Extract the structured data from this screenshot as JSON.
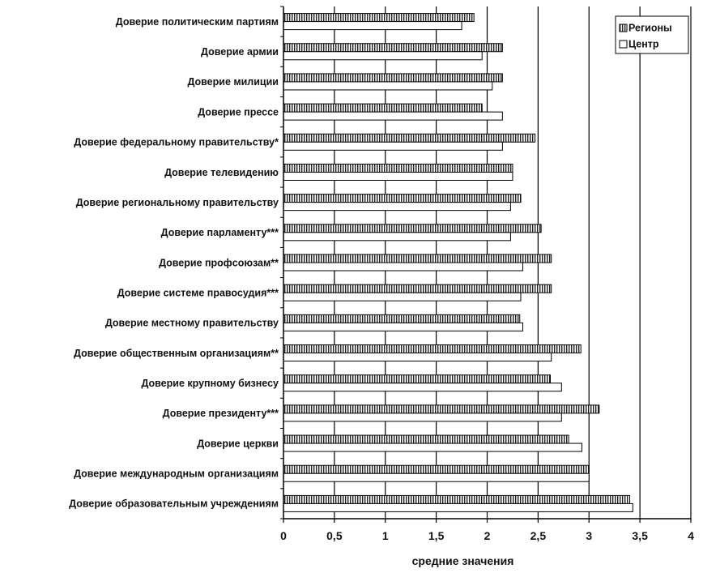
{
  "chart_data": {
    "type": "bar",
    "orientation": "horizontal",
    "categories": [
      "Доверие политическим партиям",
      "Доверие армии",
      "Доверие милиции",
      "Доверие прессе",
      "Доверие федеральному правительству*",
      "Доверие телевидению",
      "Доверие региональному правительству",
      "Доверие парламенту***",
      "Доверие профсоюзам**",
      "Доверие системе правосудия***",
      "Доверие местному  правительству",
      "Доверие общественным организациям**",
      "Доверие крупному бизнесу",
      "Доверие президенту***",
      "Доверие церкви",
      "Доверие международным организациям",
      "Доверие образовательным учреждениям"
    ],
    "series": [
      {
        "name": "Регионы",
        "pattern": "vertical-hatch",
        "values": [
          1.87,
          2.15,
          2.15,
          1.95,
          2.47,
          2.25,
          2.33,
          2.53,
          2.63,
          2.63,
          2.32,
          2.92,
          2.62,
          3.1,
          2.8,
          3.0,
          3.4
        ]
      },
      {
        "name": "Центр",
        "pattern": "white",
        "values": [
          1.75,
          1.95,
          2.05,
          2.15,
          2.15,
          2.25,
          2.23,
          2.23,
          2.35,
          2.33,
          2.35,
          2.63,
          2.73,
          2.73,
          2.93,
          3.0,
          3.43
        ]
      }
    ],
    "x_ticks": [
      "0",
      "0,5",
      "1",
      "1,5",
      "2",
      "2,5",
      "3",
      "3,5",
      "4"
    ],
    "xlim": [
      0,
      4
    ],
    "xlabel": "средние значения",
    "grid": "vertical",
    "legend_position": "top-right"
  }
}
